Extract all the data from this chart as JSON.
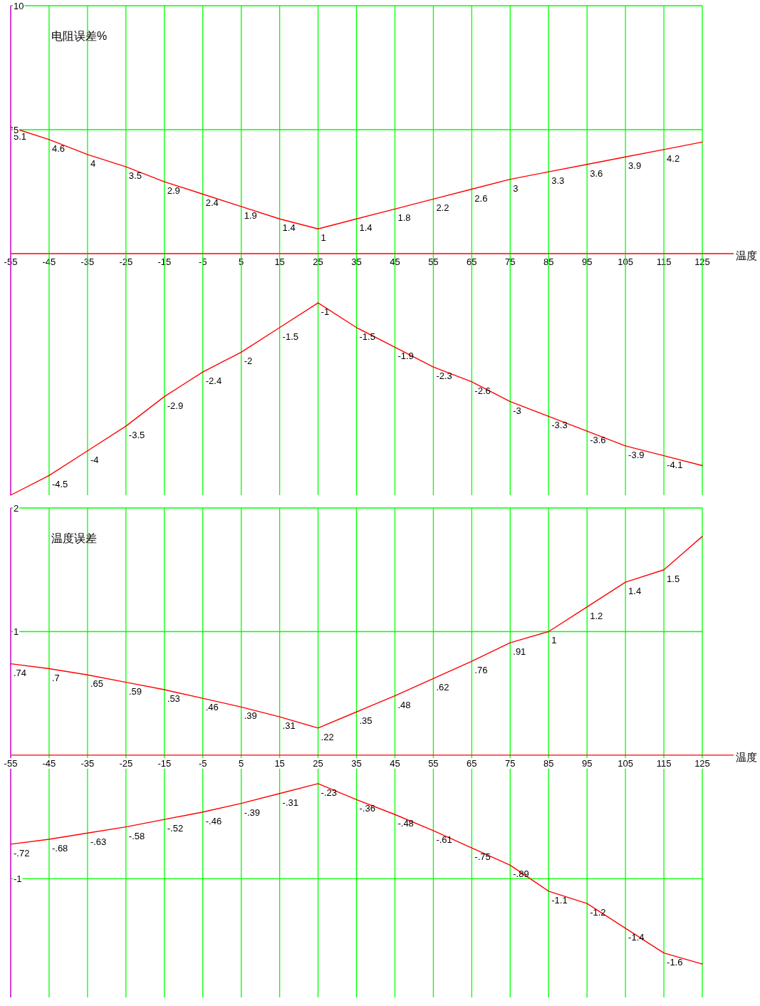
{
  "chart_data": [
    {
      "type": "line",
      "ylabel": "电阻误差%",
      "xlabel": "温度",
      "x": [
        -55,
        -45,
        -35,
        -25,
        -15,
        -5,
        5,
        15,
        25,
        35,
        45,
        55,
        65,
        75,
        85,
        95,
        105,
        115,
        125
      ],
      "xlim": [
        -55,
        125
      ],
      "xticks": [
        -55,
        -45,
        -35,
        -25,
        -15,
        -5,
        5,
        15,
        25,
        35,
        45,
        55,
        65,
        75,
        85,
        95,
        105,
        115,
        125
      ],
      "ylim": [
        0,
        10
      ],
      "yticks": [
        10,
        5
      ],
      "grid": true,
      "series": [
        {
          "color": "#ff0000",
          "values": [
            5.1,
            4.6,
            4,
            3.5,
            2.9,
            2.4,
            1.9,
            1.4,
            1,
            1.4,
            1.8,
            2.2,
            2.6,
            3,
            3.3,
            3.6,
            3.9,
            4.2,
            4.5
          ],
          "value_labels": [
            "5.1",
            "4.6",
            "4",
            "3.5",
            "2.9",
            "2.4",
            "1.9",
            "1.4",
            "1",
            "1.4",
            "1.8",
            "2.2",
            "2.6",
            "3",
            "3.3",
            "3.6",
            "3.9",
            "4.2",
            null
          ]
        }
      ]
    },
    {
      "type": "line",
      "categories": [
        null,
        null,
        null,
        null,
        null,
        null,
        null,
        null,
        null,
        null,
        null,
        null,
        null,
        null,
        null,
        null,
        null,
        null,
        null
      ],
      "grid": "x",
      "series": [
        {
          "color": "#ff0000",
          "values": [
            -4.9,
            -4.5,
            -4,
            -3.5,
            -2.9,
            -2.4,
            -2,
            -1.5,
            -1,
            -1.5,
            -1.9,
            -2.3,
            -2.6,
            -3,
            -3.3,
            -3.6,
            -3.9,
            -4.1,
            -4.3
          ],
          "value_labels": [
            null,
            "-4.5",
            "-4",
            "-3.5",
            "-2.9",
            "-2.4",
            "-2",
            "-1.5",
            "-1",
            "-1.5",
            "-1.9",
            "-2.3",
            "-2.6",
            "-3",
            "-3.3",
            "-3.6",
            "-3.9",
            "-4.1",
            null
          ]
        }
      ]
    },
    {
      "type": "line",
      "ylabel": "温度误差",
      "xlabel": "温度",
      "x": [
        -55,
        -45,
        -35,
        -25,
        -15,
        -5,
        5,
        15,
        25,
        35,
        45,
        55,
        65,
        75,
        85,
        95,
        105,
        115,
        125
      ],
      "xlim": [
        -55,
        125
      ],
      "xticks": [
        -55,
        -45,
        -35,
        -25,
        -15,
        -5,
        5,
        15,
        25,
        35,
        45,
        55,
        65,
        75,
        85,
        95,
        105,
        115,
        125
      ],
      "ylim": [
        -1.96,
        2
      ],
      "yticks": [
        2,
        1,
        -1
      ],
      "grid": true,
      "series": [
        {
          "color": "#ff0000",
          "values": [
            0.74,
            0.7,
            0.65,
            0.59,
            0.53,
            0.46,
            0.39,
            0.31,
            0.22,
            0.35,
            0.48,
            0.62,
            0.76,
            0.91,
            1,
            1.2,
            1.4,
            1.5,
            1.77
          ],
          "value_labels": [
            ".74",
            ".7",
            ".65",
            ".59",
            ".53",
            ".46",
            ".39",
            ".31",
            ".22",
            ".35",
            ".48",
            ".62",
            ".76",
            ".91",
            "1",
            "1.2",
            "1.4",
            "1.5",
            null
          ]
        },
        {
          "color": "#ff0000",
          "values": [
            -0.72,
            -0.68,
            -0.63,
            -0.58,
            -0.52,
            -0.46,
            -0.39,
            -0.31,
            -0.23,
            -0.36,
            -0.48,
            -0.61,
            -0.75,
            -0.89,
            -1.1,
            -1.2,
            -1.4,
            -1.6,
            -1.69
          ],
          "value_labels": [
            "-.72",
            "-.68",
            "-.63",
            "-.58",
            "-.52",
            "-.46",
            "-.39",
            "-.31",
            "-.23",
            "-.36",
            "-.48",
            "-.61",
            "-.75",
            "-.89",
            "-1.1",
            "-1.2",
            "-1.4",
            "-1.6",
            null
          ]
        }
      ]
    }
  ]
}
